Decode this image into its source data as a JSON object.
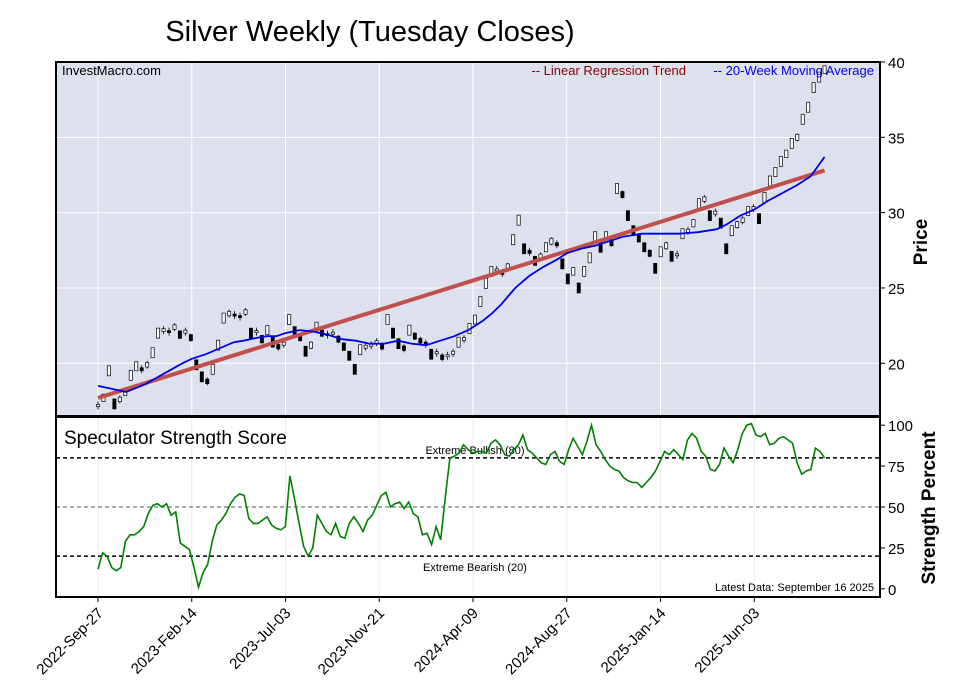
{
  "chart_data": {
    "type": "line",
    "title": "Silver Weekly (Tuesday Closes)",
    "watermark": "InvestMacro.com",
    "latest_data": "Latest Data: September 16 2025",
    "colors": {
      "background": "#dde1ee",
      "regression": "#c0504d",
      "moving_average": "#0000ee",
      "strength": "#008000",
      "legend_regression_text": "#8b0000",
      "legend_ma_text": "#0000ee"
    },
    "x_tick_labels": [
      "2022-Sep-27",
      "2023-Feb-14",
      "2023-Jul-03",
      "2023-Nov-21",
      "2024-Apr-09",
      "2024-Aug-27",
      "2025-Jan-14",
      "2025-Jun-03"
    ],
    "x_tick_weeks": [
      0,
      20,
      40,
      60,
      80,
      100,
      120,
      140
    ],
    "price_panel": {
      "ylabel": "Price",
      "ylim": [
        16.5,
        40
      ],
      "yticks": [
        20,
        25,
        30,
        35,
        40
      ],
      "legend": [
        {
          "label": "-- Linear Regression Trend",
          "color": "#8b0000"
        },
        {
          "label": "-- 20-Week Moving Average",
          "color": "#0000ee"
        }
      ],
      "regression_trend": {
        "start": [
          0,
          17.7
        ],
        "end": [
          155,
          32.8
        ]
      },
      "moving_average": [
        [
          0,
          18.5
        ],
        [
          3,
          18.3
        ],
        [
          6,
          18.1
        ],
        [
          10,
          18.6
        ],
        [
          14,
          19.3
        ],
        [
          18,
          20.0
        ],
        [
          20,
          20.3
        ],
        [
          23,
          20.6
        ],
        [
          26,
          21.0
        ],
        [
          29,
          21.4
        ],
        [
          31,
          21.5
        ],
        [
          34,
          21.7
        ],
        [
          36,
          21.8
        ],
        [
          38,
          21.8
        ],
        [
          40,
          22.0
        ],
        [
          43,
          22.2
        ],
        [
          46,
          22.1
        ],
        [
          49,
          21.9
        ],
        [
          52,
          21.6
        ],
        [
          55,
          21.5
        ],
        [
          58,
          21.3
        ],
        [
          61,
          21.3
        ],
        [
          64,
          21.5
        ],
        [
          67,
          21.3
        ],
        [
          70,
          21.2
        ],
        [
          73,
          21.5
        ],
        [
          76,
          21.8
        ],
        [
          79,
          22.2
        ],
        [
          82,
          22.8
        ],
        [
          84,
          23.3
        ],
        [
          86,
          23.9
        ],
        [
          89,
          25.0
        ],
        [
          92,
          25.8
        ],
        [
          95,
          26.4
        ],
        [
          98,
          26.9
        ],
        [
          100,
          27.3
        ],
        [
          103,
          27.6
        ],
        [
          106,
          27.8
        ],
        [
          109,
          28.1
        ],
        [
          112,
          28.4
        ],
        [
          116,
          28.6
        ],
        [
          120,
          28.6
        ],
        [
          124,
          28.6
        ],
        [
          128,
          28.7
        ],
        [
          132,
          28.9
        ],
        [
          134,
          29.2
        ],
        [
          137,
          29.8
        ],
        [
          140,
          30.2
        ],
        [
          143,
          30.8
        ],
        [
          146,
          31.3
        ],
        [
          149,
          31.8
        ],
        [
          152,
          32.4
        ],
        [
          155,
          33.7
        ]
      ],
      "closes": [
        [
          0,
          17.2
        ],
        [
          1,
          17.7
        ],
        [
          2,
          19.5
        ],
        [
          3,
          17.3
        ],
        [
          4,
          17.6
        ],
        [
          5,
          18.1
        ],
        [
          6,
          19.2
        ],
        [
          7,
          19.8
        ],
        [
          8,
          19.6
        ],
        [
          9,
          19.9
        ],
        [
          10,
          20.7
        ],
        [
          11,
          22.0
        ],
        [
          12,
          22.2
        ],
        [
          13,
          22.1
        ],
        [
          14,
          22.4
        ],
        [
          15,
          21.9
        ],
        [
          16,
          22.1
        ],
        [
          17,
          21.7
        ],
        [
          18,
          19.9
        ],
        [
          19,
          19.1
        ],
        [
          20,
          18.8
        ],
        [
          21,
          19.6
        ],
        [
          22,
          21.2
        ],
        [
          23,
          23.0
        ],
        [
          24,
          23.3
        ],
        [
          25,
          23.2
        ],
        [
          26,
          23.1
        ],
        [
          27,
          23.4
        ],
        [
          28,
          22.0
        ],
        [
          29,
          22.1
        ],
        [
          30,
          21.6
        ],
        [
          31,
          22.2
        ],
        [
          32,
          21.4
        ],
        [
          33,
          21.1
        ],
        [
          34,
          21.3
        ],
        [
          35,
          22.9
        ],
        [
          36,
          22.1
        ],
        [
          37,
          21.7
        ],
        [
          38,
          20.8
        ],
        [
          39,
          21.2
        ],
        [
          40,
          22.4
        ],
        [
          41,
          22.0
        ],
        [
          42,
          21.9
        ],
        [
          43,
          22.0
        ],
        [
          44,
          21.6
        ],
        [
          45,
          21.1
        ],
        [
          46,
          20.5
        ],
        [
          47,
          19.6
        ],
        [
          48,
          20.9
        ],
        [
          49,
          21.1
        ],
        [
          50,
          21.2
        ],
        [
          51,
          21.4
        ],
        [
          52,
          21.1
        ],
        [
          53,
          22.9
        ],
        [
          54,
          22.0
        ],
        [
          55,
          21.3
        ],
        [
          56,
          21.0
        ],
        [
          57,
          22.2
        ],
        [
          58,
          21.8
        ],
        [
          59,
          21.5
        ],
        [
          60,
          21.3
        ],
        [
          61,
          20.6
        ],
        [
          62,
          20.7
        ],
        [
          63,
          20.4
        ],
        [
          64,
          20.5
        ],
        [
          65,
          20.7
        ],
        [
          66,
          21.4
        ],
        [
          67,
          21.6
        ],
        [
          68,
          22.3
        ],
        [
          69,
          22.9
        ],
        [
          70,
          24.1
        ],
        [
          71,
          25.3
        ],
        [
          72,
          26.1
        ],
        [
          73,
          26.2
        ],
        [
          74,
          26.0
        ],
        [
          75,
          26.4
        ],
        [
          76,
          28.2
        ],
        [
          77,
          29.5
        ],
        [
          78,
          27.6
        ],
        [
          79,
          27.4
        ],
        [
          80,
          26.8
        ],
        [
          81,
          27.1
        ],
        [
          82,
          27.7
        ],
        [
          83,
          28.1
        ],
        [
          84,
          27.9
        ],
        [
          85,
          26.6
        ],
        [
          86,
          25.6
        ],
        [
          87,
          26.1
        ],
        [
          88,
          25.0
        ],
        [
          89,
          26.1
        ],
        [
          90,
          27.0
        ],
        [
          91,
          28.4
        ],
        [
          92,
          27.7
        ],
        [
          93,
          28.4
        ],
        [
          94,
          28.0
        ],
        [
          95,
          31.6
        ],
        [
          96,
          31.2
        ],
        [
          97,
          29.8
        ],
        [
          98,
          28.8
        ],
        [
          99,
          28.3
        ],
        [
          100,
          27.7
        ],
        [
          101,
          27.3
        ],
        [
          102,
          26.3
        ],
        [
          103,
          27.4
        ],
        [
          104,
          27.8
        ],
        [
          105,
          27.1
        ],
        [
          106,
          27.2
        ],
        [
          107,
          28.6
        ],
        [
          108,
          28.8
        ],
        [
          109,
          29.3
        ],
        [
          110,
          30.6
        ],
        [
          111,
          30.9
        ],
        [
          112,
          29.8
        ],
        [
          113,
          30.0
        ],
        [
          114,
          29.3
        ],
        [
          115,
          27.6
        ],
        [
          116,
          28.8
        ],
        [
          117,
          29.2
        ],
        [
          118,
          29.5
        ],
        [
          119,
          30.1
        ],
        [
          120,
          30.3
        ],
        [
          121,
          29.6
        ],
        [
          122,
          31.0
        ],
        [
          123,
          32.1
        ],
        [
          124,
          32.7
        ],
        [
          125,
          33.4
        ],
        [
          126,
          33.9
        ],
        [
          127,
          34.6
        ],
        [
          128,
          35.0
        ],
        [
          129,
          36.2
        ],
        [
          130,
          37.0
        ],
        [
          131,
          38.3
        ],
        [
          132,
          39.0
        ],
        [
          133,
          39.5
        ]
      ]
    },
    "strength_panel": {
      "title": "Speculator Strength Score",
      "ylabel": "Strength Percent",
      "ylim": [
        -5,
        105
      ],
      "yticks": [
        0,
        25,
        50,
        75,
        100
      ],
      "levels": [
        {
          "value": 80,
          "label": "Extreme Bullish (80)"
        },
        {
          "value": 50,
          "label": ""
        },
        {
          "value": 20,
          "label": "Extreme Bearish (20)"
        }
      ],
      "series": [
        [
          0,
          12
        ],
        [
          1,
          22
        ],
        [
          2,
          20
        ],
        [
          3,
          13
        ],
        [
          4,
          11
        ],
        [
          5,
          13
        ],
        [
          6,
          29
        ],
        [
          7,
          33
        ],
        [
          8,
          33
        ],
        [
          9,
          35
        ],
        [
          10,
          38
        ],
        [
          11,
          46
        ],
        [
          12,
          51
        ],
        [
          13,
          52
        ],
        [
          14,
          50
        ],
        [
          15,
          52
        ],
        [
          16,
          45
        ],
        [
          17,
          47
        ],
        [
          18,
          28
        ],
        [
          19,
          26
        ],
        [
          20,
          24
        ],
        [
          21,
          13
        ],
        [
          22,
          1
        ],
        [
          23,
          10
        ],
        [
          24,
          15
        ],
        [
          25,
          29
        ],
        [
          26,
          39
        ],
        [
          27,
          42
        ],
        [
          28,
          46
        ],
        [
          29,
          52
        ],
        [
          30,
          56
        ],
        [
          31,
          58
        ],
        [
          32,
          57
        ],
        [
          33,
          43
        ],
        [
          34,
          40
        ],
        [
          35,
          40
        ],
        [
          36,
          42
        ],
        [
          37,
          44
        ],
        [
          38,
          39
        ],
        [
          39,
          37
        ],
        [
          40,
          36
        ],
        [
          41,
          38
        ],
        [
          42,
          69
        ],
        [
          43,
          55
        ],
        [
          44,
          40
        ],
        [
          45,
          26
        ],
        [
          46,
          20
        ],
        [
          47,
          25
        ],
        [
          48,
          45
        ],
        [
          49,
          40
        ],
        [
          50,
          35
        ],
        [
          51,
          33
        ],
        [
          52,
          40
        ],
        [
          53,
          32
        ],
        [
          54,
          31
        ],
        [
          55,
          40
        ],
        [
          56,
          44
        ],
        [
          57,
          40
        ],
        [
          58,
          35
        ],
        [
          59,
          42
        ],
        [
          60,
          45
        ],
        [
          61,
          51
        ],
        [
          62,
          57
        ],
        [
          63,
          59
        ],
        [
          64,
          50
        ],
        [
          65,
          52
        ],
        [
          66,
          53
        ],
        [
          67,
          49
        ],
        [
          68,
          53
        ],
        [
          69,
          46
        ],
        [
          70,
          44
        ],
        [
          71,
          33
        ],
        [
          72,
          34
        ],
        [
          73,
          27
        ],
        [
          74,
          38
        ],
        [
          75,
          30
        ],
        [
          76,
          56
        ],
        [
          77,
          80
        ],
        [
          78,
          81
        ],
        [
          79,
          83
        ],
        [
          80,
          88
        ],
        [
          81,
          85
        ],
        [
          82,
          83
        ],
        [
          83,
          84
        ],
        [
          84,
          84
        ],
        [
          85,
          83
        ],
        [
          86,
          89
        ],
        [
          87,
          91
        ],
        [
          88,
          88
        ],
        [
          89,
          82
        ],
        [
          90,
          81
        ],
        [
          91,
          85
        ],
        [
          92,
          88
        ],
        [
          93,
          94
        ],
        [
          94,
          85
        ],
        [
          95,
          83
        ],
        [
          96,
          80
        ],
        [
          97,
          77
        ],
        [
          98,
          76
        ],
        [
          99,
          82
        ],
        [
          100,
          84
        ],
        [
          101,
          78
        ],
        [
          102,
          76
        ],
        [
          103,
          85
        ],
        [
          104,
          92
        ],
        [
          105,
          87
        ],
        [
          106,
          82
        ],
        [
          107,
          90
        ],
        [
          108,
          100
        ],
        [
          109,
          88
        ],
        [
          110,
          84
        ],
        [
          111,
          79
        ],
        [
          112,
          75
        ],
        [
          113,
          73
        ],
        [
          114,
          72
        ],
        [
          115,
          68
        ],
        [
          116,
          66
        ],
        [
          117,
          65
        ],
        [
          118,
          65
        ],
        [
          119,
          62
        ],
        [
          120,
          65
        ],
        [
          121,
          68
        ],
        [
          122,
          72
        ],
        [
          123,
          78
        ],
        [
          124,
          84
        ],
        [
          125,
          82
        ],
        [
          126,
          85
        ],
        [
          127,
          82
        ],
        [
          128,
          79
        ],
        [
          129,
          91
        ],
        [
          130,
          95
        ],
        [
          131,
          92
        ],
        [
          132,
          84
        ],
        [
          133,
          81
        ],
        [
          134,
          73
        ],
        [
          135,
          72
        ],
        [
          136,
          76
        ],
        [
          137,
          86
        ],
        [
          138,
          81
        ],
        [
          139,
          77
        ],
        [
          140,
          85
        ],
        [
          141,
          95
        ],
        [
          142,
          100
        ],
        [
          143,
          101
        ],
        [
          144,
          94
        ],
        [
          145,
          93
        ],
        [
          146,
          95
        ],
        [
          147,
          88
        ],
        [
          148,
          89
        ],
        [
          149,
          92
        ],
        [
          150,
          93
        ],
        [
          151,
          91
        ],
        [
          152,
          89
        ],
        [
          153,
          77
        ],
        [
          154,
          70
        ],
        [
          155,
          72
        ],
        [
          156,
          73
        ],
        [
          157,
          86
        ],
        [
          158,
          84
        ],
        [
          159,
          80
        ]
      ]
    }
  }
}
